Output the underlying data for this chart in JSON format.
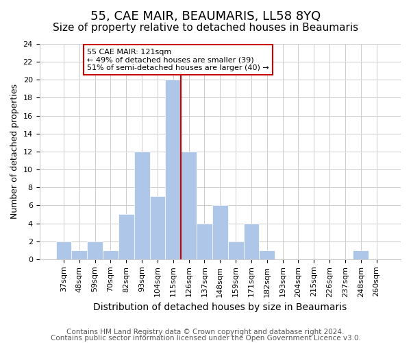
{
  "title": "55, CAE MAIR, BEAUMARIS, LL58 8YQ",
  "subtitle": "Size of property relative to detached houses in Beaumaris",
  "xlabel": "Distribution of detached houses by size in Beaumaris",
  "ylabel": "Number of detached properties",
  "bins": [
    "37sqm",
    "48sqm",
    "59sqm",
    "70sqm",
    "82sqm",
    "93sqm",
    "104sqm",
    "115sqm",
    "126sqm",
    "137sqm",
    "148sqm",
    "159sqm",
    "171sqm",
    "182sqm",
    "193sqm",
    "204sqm",
    "215sqm",
    "226sqm",
    "237sqm",
    "248sqm",
    "260sqm"
  ],
  "counts": [
    2,
    1,
    2,
    1,
    5,
    12,
    7,
    20,
    12,
    4,
    6,
    2,
    4,
    1,
    0,
    0,
    0,
    0,
    0,
    1,
    0
  ],
  "bar_color": "#aec6e8",
  "vline_x": 7.5,
  "vline_color": "#cc0000",
  "annotation_text": "55 CAE MAIR: 121sqm\n← 49% of detached houses are smaller (39)\n51% of semi-detached houses are larger (40) →",
  "annotation_box_color": "#ffffff",
  "annotation_box_edge": "#cc0000",
  "ylim": [
    0,
    24
  ],
  "yticks": [
    0,
    2,
    4,
    6,
    8,
    10,
    12,
    14,
    16,
    18,
    20,
    22,
    24
  ],
  "footer1": "Contains HM Land Registry data © Crown copyright and database right 2024.",
  "footer2": "Contains public sector information licensed under the Open Government Licence v3.0.",
  "title_fontsize": 13,
  "subtitle_fontsize": 11,
  "xlabel_fontsize": 10,
  "ylabel_fontsize": 9,
  "tick_fontsize": 8,
  "footer_fontsize": 7.5
}
